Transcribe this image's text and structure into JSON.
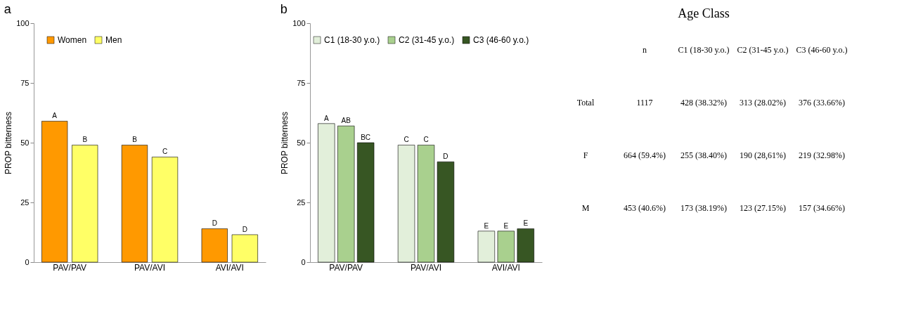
{
  "chart_data": [
    {
      "type": "bar",
      "title": "a",
      "ylabel": "PROP bitterness",
      "categories": [
        "PAV/PAV",
        "PAV/AVI",
        "AVI/AVI"
      ],
      "ylim": [
        0,
        100
      ],
      "yticks": [
        0,
        25,
        50,
        75,
        100
      ],
      "legend": "top left",
      "grid": false,
      "series": [
        {
          "name": "Women",
          "color": "#ff9900",
          "values": [
            59,
            49,
            14
          ],
          "value_labels": [
            "A",
            "B",
            "D"
          ]
        },
        {
          "name": "Men",
          "color": "#ffff66",
          "values": [
            49,
            44,
            11.5
          ],
          "value_labels": [
            "B",
            "C",
            "D"
          ]
        }
      ]
    },
    {
      "type": "bar",
      "title": "b",
      "ylabel": "PROP bitterness",
      "categories": [
        "PAV/PAV",
        "PAV/AVI",
        "AVI/AVI"
      ],
      "ylim": [
        0,
        100
      ],
      "yticks": [
        0,
        25,
        50,
        75,
        100
      ],
      "legend": "top right",
      "grid": false,
      "series": [
        {
          "name": "C1 (18-30 y.o.)",
          "color": "#e2efda",
          "values": [
            58,
            49,
            13
          ],
          "value_labels": [
            "A",
            "C",
            "E"
          ]
        },
        {
          "name": "C2 (31-45 y.o.)",
          "color": "#a9d08e",
          "values": [
            57,
            49,
            13
          ],
          "value_labels": [
            "AB",
            "C",
            "E"
          ]
        },
        {
          "name": "C3 (46-60 y.o.)",
          "color": "#375623",
          "values": [
            50,
            42,
            14
          ],
          "value_labels": [
            "BC",
            "D",
            "E"
          ]
        }
      ]
    },
    {
      "type": "other",
      "title": "Age Class",
      "annotations": [
        "n",
        "C1 (18-30 y.o.)",
        "C2 (31-45 y.o.)",
        "C3 (46-60 y.o.)",
        "Total",
        "1117",
        "428 (38.32%)",
        "313 (28.02%)",
        "376 (33.66%)",
        "F",
        "664 (59.4%)",
        "255 (38.40%)",
        "190 (28,61%)",
        "219 (32.98%)",
        "M",
        "453 (40.6%)",
        "173 (38.19%)",
        "123 (27.15%)",
        "157 (34.66%)"
      ]
    }
  ]
}
